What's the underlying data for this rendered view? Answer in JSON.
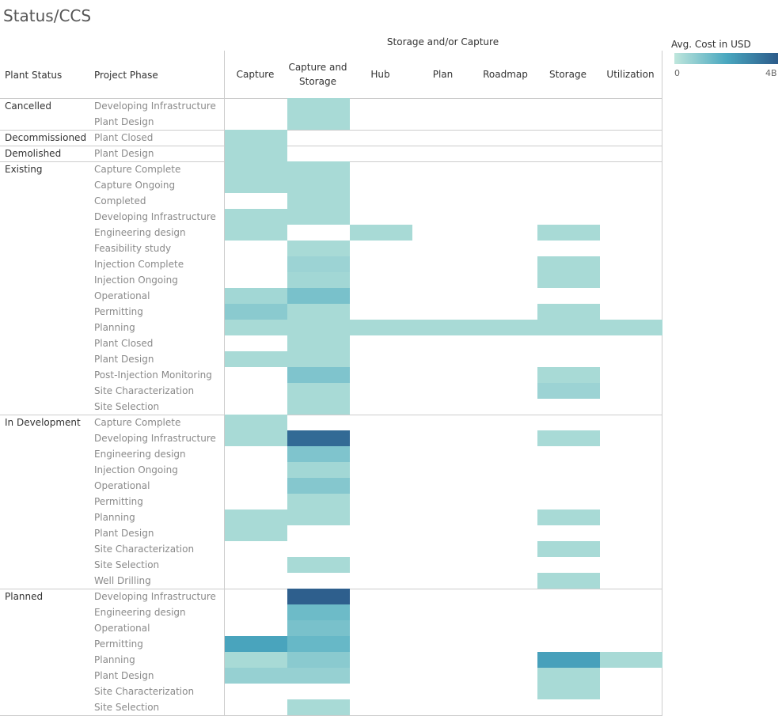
{
  "title": "Status/CCS",
  "legend": {
    "title": "Avg. Cost in USD",
    "min_label": "0",
    "max_label": "4B"
  },
  "header": {
    "row_dim1": "Plant Status",
    "row_dim2": "Project Phase",
    "col_group": "Storage and/or Capture"
  },
  "colors": {
    "low": "#bfe6dc",
    "mid": "#4aa8c0",
    "high": "#2c5b8a"
  },
  "chart_data": {
    "type": "heatmap",
    "title": "Status/CCS",
    "xlabel": "Storage and/or Capture",
    "ylabel": "Plant Status / Project Phase",
    "value_label": "Avg. Cost in USD",
    "value_range": [
      0,
      4000000000
    ],
    "columns": [
      "Capture",
      "Capture and Storage",
      "Hub",
      "Plan",
      "Roadmap",
      "Storage",
      "Utilization"
    ],
    "groups": [
      {
        "status": "Cancelled",
        "phases": [
          {
            "phase": "Developing Infrastructure",
            "values": [
              null,
              0.4,
              null,
              null,
              null,
              null,
              null
            ]
          },
          {
            "phase": "Plant Design",
            "values": [
              null,
              0.4,
              null,
              null,
              null,
              null,
              null
            ]
          }
        ]
      },
      {
        "status": "Decommissioned",
        "phases": [
          {
            "phase": "Plant Closed",
            "values": [
              0.4,
              null,
              null,
              null,
              null,
              null,
              null
            ]
          }
        ]
      },
      {
        "status": "Demolished",
        "phases": [
          {
            "phase": "Plant Design",
            "values": [
              0.4,
              null,
              null,
              null,
              null,
              null,
              null
            ]
          }
        ]
      },
      {
        "status": "Existing",
        "phases": [
          {
            "phase": "Capture Complete",
            "values": [
              0.4,
              0.4,
              null,
              null,
              null,
              null,
              null
            ]
          },
          {
            "phase": "Capture Ongoing",
            "values": [
              0.4,
              0.4,
              null,
              null,
              null,
              null,
              null
            ]
          },
          {
            "phase": "Completed",
            "values": [
              null,
              0.4,
              null,
              null,
              null,
              null,
              null
            ]
          },
          {
            "phase": "Developing Infrastructure",
            "values": [
              0.4,
              0.4,
              null,
              null,
              null,
              null,
              null
            ]
          },
          {
            "phase": "Engineering design",
            "values": [
              0.4,
              null,
              0.4,
              null,
              null,
              0.4,
              null
            ]
          },
          {
            "phase": "Feasibility study",
            "values": [
              null,
              0.4,
              null,
              null,
              null,
              null,
              null
            ]
          },
          {
            "phase": "Injection Complete",
            "values": [
              null,
              0.6,
              null,
              null,
              null,
              0.4,
              null
            ]
          },
          {
            "phase": "Injection Ongoing",
            "values": [
              null,
              0.5,
              null,
              null,
              null,
              0.4,
              null
            ]
          },
          {
            "phase": "Operational",
            "values": [
              0.5,
              1.2,
              null,
              null,
              null,
              null,
              null
            ]
          },
          {
            "phase": "Permitting",
            "values": [
              0.9,
              0.4,
              null,
              null,
              null,
              0.4,
              null
            ]
          },
          {
            "phase": "Planning",
            "values": [
              0.4,
              0.4,
              0.4,
              0.4,
              0.4,
              0.4,
              0.4
            ]
          },
          {
            "phase": "Plant Closed",
            "values": [
              null,
              0.4,
              null,
              null,
              null,
              null,
              null
            ]
          },
          {
            "phase": "Plant Design",
            "values": [
              0.4,
              0.4,
              null,
              null,
              null,
              null,
              null
            ]
          },
          {
            "phase": "Post-Injection Monitoring",
            "values": [
              null,
              1.1,
              null,
              null,
              null,
              0.4,
              null
            ]
          },
          {
            "phase": "Site Characterization",
            "values": [
              null,
              0.4,
              null,
              null,
              null,
              0.6,
              null
            ]
          },
          {
            "phase": "Site Selection",
            "values": [
              null,
              0.4,
              null,
              null,
              null,
              null,
              null
            ]
          }
        ]
      },
      {
        "status": "In Development",
        "phases": [
          {
            "phase": "Capture Complete",
            "values": [
              0.4,
              null,
              null,
              null,
              null,
              null,
              null
            ]
          },
          {
            "phase": "Developing Infrastructure",
            "values": [
              0.4,
              3.6,
              null,
              null,
              null,
              0.4,
              null
            ]
          },
          {
            "phase": "Engineering design",
            "values": [
              null,
              1.1,
              null,
              null,
              null,
              null,
              null
            ]
          },
          {
            "phase": "Injection Ongoing",
            "values": [
              null,
              0.5,
              null,
              null,
              null,
              null,
              null
            ]
          },
          {
            "phase": "Operational",
            "values": [
              null,
              1.0,
              null,
              null,
              null,
              null,
              null
            ]
          },
          {
            "phase": "Permitting",
            "values": [
              null,
              0.4,
              null,
              null,
              null,
              null,
              null
            ]
          },
          {
            "phase": "Planning",
            "values": [
              0.4,
              0.4,
              null,
              null,
              null,
              0.4,
              null
            ]
          },
          {
            "phase": "Plant Design",
            "values": [
              0.4,
              null,
              null,
              null,
              null,
              null,
              null
            ]
          },
          {
            "phase": "Site Characterization",
            "values": [
              null,
              null,
              null,
              null,
              null,
              0.4,
              null
            ]
          },
          {
            "phase": "Site Selection",
            "values": [
              null,
              0.4,
              null,
              null,
              null,
              null,
              null
            ]
          },
          {
            "phase": "Well Drilling",
            "values": [
              null,
              null,
              null,
              null,
              null,
              0.4,
              null
            ]
          }
        ]
      },
      {
        "status": "Planned",
        "phases": [
          {
            "phase": "Developing Infrastructure",
            "values": [
              null,
              3.9,
              null,
              null,
              null,
              null,
              null
            ]
          },
          {
            "phase": "Engineering design",
            "values": [
              null,
              1.4,
              null,
              null,
              null,
              null,
              null
            ]
          },
          {
            "phase": "Operational",
            "values": [
              null,
              1.2,
              null,
              null,
              null,
              null,
              null
            ]
          },
          {
            "phase": "Permitting",
            "values": [
              2.1,
              1.5,
              null,
              null,
              null,
              null,
              null
            ]
          },
          {
            "phase": "Planning",
            "values": [
              0.4,
              0.9,
              null,
              null,
              null,
              2.2,
              0.4
            ]
          },
          {
            "phase": "Plant Design",
            "values": [
              0.7,
              0.7,
              null,
              null,
              null,
              0.4,
              null
            ]
          },
          {
            "phase": "Site Characterization",
            "values": [
              null,
              null,
              null,
              null,
              null,
              0.4,
              null
            ]
          },
          {
            "phase": "Site Selection",
            "values": [
              null,
              0.4,
              null,
              null,
              null,
              null,
              null
            ]
          }
        ]
      }
    ]
  }
}
